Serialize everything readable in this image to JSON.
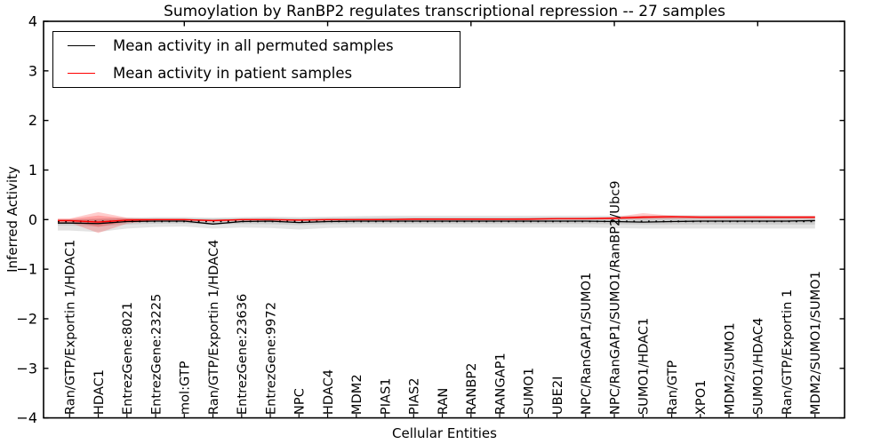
{
  "figure": {
    "title": "Sumoylation by RanBP2 regulates transcriptional repression -- 27 samples"
  },
  "legend": {
    "items": [
      {
        "label": "Mean activity in all permuted samples",
        "color": "#000000"
      },
      {
        "label": "Mean activity in patient samples",
        "color": "#ff0000"
      }
    ]
  },
  "chart_data": {
    "type": "line",
    "title": "Sumoylation by RanBP2 regulates transcriptional repression -- 27 samples",
    "xlabel": "Cellular Entities",
    "ylabel": "Inferred Activity",
    "ylim": [
      -4,
      4
    ],
    "yticks": [
      4,
      3,
      2,
      1,
      0,
      -1,
      -2,
      -3,
      -4
    ],
    "x_major_ticks_top": [
      5,
      10,
      15,
      20,
      25
    ],
    "grid": false,
    "legend_position": "upper left",
    "categories": [
      "Ran/GTP/Exportin 1/HDAC1",
      "HDAC1",
      "EntrezGene:8021",
      "EntrezGene:23225",
      "mol:GTP",
      "Ran/GTP/Exportin 1/HDAC4",
      "EntrezGene:23636",
      "EntrezGene:9972",
      "NPC",
      "HDAC4",
      "MDM2",
      "PIAS1",
      "PIAS2",
      "RAN",
      "RANBP2",
      "RANGAP1",
      "SUMO1",
      "UBE2I",
      "NPC/RanGAP1/SUMO1",
      "NPC/RanGAP1/SUMO1/RanBP2/Ubc9",
      "SUMO1/HDAC1",
      "Ran/GTP",
      "XPO1",
      "MDM2/SUMO1",
      "SUMO1/HDAC4",
      "Ran/GTP/Exportin 1",
      "MDM2/SUMO1/SUMO1"
    ],
    "series": [
      {
        "name": "Mean activity in all permuted samples",
        "color": "#000000",
        "style": "solid",
        "values": [
          -0.07,
          -0.08,
          -0.04,
          -0.03,
          -0.03,
          -0.09,
          -0.04,
          -0.03,
          -0.06,
          -0.04,
          -0.03,
          -0.03,
          -0.03,
          -0.03,
          -0.03,
          -0.03,
          -0.03,
          -0.03,
          -0.03,
          -0.04,
          -0.05,
          -0.04,
          -0.03,
          -0.03,
          -0.03,
          -0.03,
          -0.02
        ]
      },
      {
        "name": "Mean activity in patient samples",
        "color": "#ff0000",
        "style": "solid",
        "values": [
          -0.02,
          -0.05,
          -0.01,
          0.0,
          0.0,
          -0.02,
          0.0,
          0.0,
          -0.01,
          0.0,
          0.0,
          0.0,
          0.01,
          0.01,
          0.01,
          0.01,
          0.01,
          0.02,
          0.02,
          0.03,
          0.05,
          0.06,
          0.05,
          0.05,
          0.05,
          0.05,
          0.05
        ]
      }
    ],
    "bands": [
      {
        "name": "permuted-samples-band",
        "color": "#808080",
        "opacity": 0.22,
        "upper": [
          0.0,
          0.02,
          0.04,
          0.05,
          0.05,
          0.04,
          0.05,
          0.06,
          0.05,
          0.06,
          0.07,
          0.08,
          0.08,
          0.08,
          0.08,
          0.08,
          0.08,
          0.08,
          0.08,
          0.08,
          0.08,
          0.09,
          0.09,
          0.09,
          0.09,
          0.08,
          0.08
        ],
        "lower": [
          -0.22,
          -0.25,
          -0.18,
          -0.15,
          -0.14,
          -0.18,
          -0.16,
          -0.17,
          -0.2,
          -0.17,
          -0.16,
          -0.16,
          -0.16,
          -0.16,
          -0.16,
          -0.16,
          -0.16,
          -0.16,
          -0.16,
          -0.17,
          -0.18,
          -0.18,
          -0.18,
          -0.18,
          -0.18,
          -0.18,
          -0.18
        ]
      },
      {
        "name": "patient-samples-band",
        "color": "#ff0000",
        "opacity": 0.2,
        "upper": [
          0.02,
          0.15,
          0.04,
          0.01,
          0.01,
          0.0,
          0.01,
          0.01,
          0.01,
          0.01,
          0.01,
          0.02,
          0.02,
          0.02,
          0.02,
          0.02,
          0.03,
          0.03,
          0.04,
          0.05,
          0.13,
          0.08,
          0.07,
          0.07,
          0.07,
          0.07,
          0.07
        ],
        "lower": [
          -0.06,
          -0.27,
          -0.08,
          -0.02,
          -0.02,
          -0.04,
          -0.02,
          -0.02,
          -0.03,
          -0.02,
          -0.01,
          -0.01,
          -0.01,
          -0.01,
          -0.01,
          -0.01,
          -0.01,
          0.0,
          0.0,
          0.01,
          0.02,
          0.03,
          0.03,
          0.03,
          0.03,
          0.03,
          0.03
        ]
      }
    ],
    "zero_line": {
      "style": "dotted",
      "color": "#000000",
      "y": 0
    }
  }
}
